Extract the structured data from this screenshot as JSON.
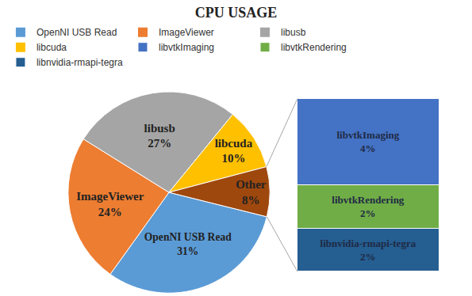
{
  "chart_data": [
    {
      "type": "pie",
      "title": "CPU USAGE",
      "categories": [
        "OpenNI USB Read",
        "ImageViewer",
        "libusb",
        "libcuda",
        "Other"
      ],
      "values": [
        31,
        24,
        27,
        10,
        8
      ],
      "value_labels": [
        "31%",
        "24%",
        "27%",
        "10%",
        "8%"
      ],
      "colors": [
        "#5b9bd5",
        "#ed7d31",
        "#a5a5a5",
        "#ffc000",
        "#9e480e"
      ],
      "data_labels": true,
      "legend": "top"
    },
    {
      "type": "bar",
      "stacked": true,
      "categories": [
        "Other"
      ],
      "series": [
        {
          "name": "libvtkImaging",
          "color": "#4472c4",
          "values": [
            4
          ],
          "value_labels": [
            "4%"
          ]
        },
        {
          "name": "libvtkRendering",
          "color": "#70ad47",
          "values": [
            2
          ],
          "value_labels": [
            "2%"
          ]
        },
        {
          "name": "libnvidia-rmapi-tegra",
          "color": "#255e91",
          "values": [
            2
          ],
          "value_labels": [
            "2%"
          ]
        }
      ],
      "ylim": [
        0,
        8
      ],
      "data_labels": true,
      "tick_labels": false
    }
  ]
}
